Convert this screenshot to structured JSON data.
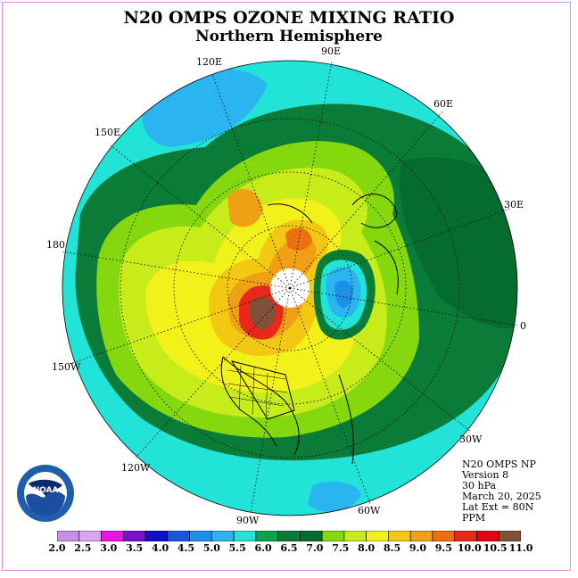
{
  "header": {
    "title": "N20 OMPS OZONE MIXING RATIO",
    "subtitle": "Northern Hemisphere"
  },
  "map": {
    "longitude_labels": [
      "90E",
      "60E",
      "30E",
      "0",
      "30W",
      "60W",
      "90W",
      "120W",
      "150W",
      "180",
      "150E",
      "120E"
    ]
  },
  "info": {
    "line1": "N20 OMPS NP",
    "line2": "Version 8",
    "line3": "30 hPa",
    "line4": "March 20, 2025",
    "line5": "Lat Ext = 80N",
    "line6": "PPM"
  },
  "colorbar": {
    "labels": [
      "2.0",
      "2.5",
      "3.0",
      "3.5",
      "4.0",
      "4.5",
      "5.0",
      "5.5",
      "6.0",
      "6.5",
      "7.0",
      "7.5",
      "8.0",
      "8.5",
      "9.0",
      "9.5",
      "10.0",
      "10.5",
      "11.0"
    ],
    "colors": [
      "#c78ee8",
      "#dba6f0",
      "#e817e0",
      "#7a10c8",
      "#1010c8",
      "#1a55e0",
      "#1f8ee8",
      "#2ab4f0",
      "#22e3d7",
      "#0fa24a",
      "#0b7c38",
      "#066b2e",
      "#86d80e",
      "#c8ec1a",
      "#f2f21a",
      "#f2c812",
      "#f0a014",
      "#ec7010",
      "#e82818",
      "#e80010",
      "#805038"
    ]
  },
  "logo": {
    "text": "NOAA"
  }
}
